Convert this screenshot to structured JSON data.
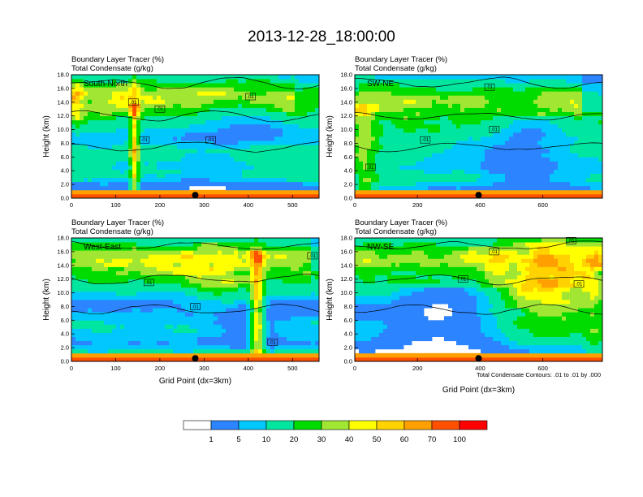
{
  "figure": {
    "title": "2013-12-28_18:00:00",
    "contour_note": "Total Condensate Contours: .01 to .01 by .000"
  },
  "colors": {
    "bins": [
      "#ffffff",
      "#2c84ff",
      "#00c8ff",
      "#00e6a0",
      "#00dc00",
      "#a0e632",
      "#ffff00",
      "#ffd200",
      "#ffa000",
      "#ff5000",
      "#ff0000"
    ],
    "contour": "#000000",
    "marker": "#000000"
  },
  "colorbar": {
    "labels": [
      "1",
      "5",
      "10",
      "20",
      "30",
      "40",
      "50",
      "60",
      "70",
      "100"
    ]
  },
  "chart_data": [
    {
      "type": "heatmap",
      "panel_label": "South-North",
      "title_left_1": "Boundary Layer Tracer   (%)",
      "title_left_2": "Total Condensate  (g/kg)",
      "ylabel": "Height (km)",
      "xlabel": "",
      "xlim": [
        0,
        560
      ],
      "ylim": [
        0,
        18
      ],
      "xticks": [
        "0",
        "100",
        "200",
        "300",
        "400",
        "500"
      ],
      "yticks": [
        "0.0",
        "2.0",
        "4.0",
        "6.0",
        "8.0",
        "10.0",
        "12.0",
        "14.0",
        "16.0",
        "18.0"
      ],
      "marker_x": 280,
      "contour_labels": [
        {
          "text": ".01",
          "x": 140,
          "y": 14.0
        },
        {
          "text": ".01",
          "x": 200,
          "y": 13.0
        },
        {
          "text": ".01",
          "x": 165,
          "y": 8.5
        },
        {
          "text": ".01",
          "x": 315,
          "y": 8.5
        },
        {
          "text": ".01",
          "x": 405,
          "y": 14.8
        }
      ]
    },
    {
      "type": "heatmap",
      "panel_label": "SW-NE",
      "title_left_1": "Boundary Layer Tracer   (%)",
      "title_left_2": "Total Condensate  (g/kg)",
      "ylabel": "Height (km)",
      "xlabel": "",
      "xlim": [
        0,
        790
      ],
      "ylim": [
        0,
        18
      ],
      "xticks": [
        "0",
        "200",
        "400",
        "600"
      ],
      "yticks": [
        "0.0",
        "2.0",
        "4.0",
        "6.0",
        "8.0",
        "10.0",
        "12.0",
        "14.0",
        "16.0",
        "18.0"
      ],
      "marker_x": 395,
      "contour_labels": [
        {
          "text": ".01",
          "x": 430,
          "y": 16.2
        },
        {
          "text": ".01",
          "x": 445,
          "y": 10.0
        },
        {
          "text": ".01",
          "x": 225,
          "y": 8.5
        },
        {
          "text": ".01",
          "x": 50,
          "y": 4.5
        }
      ]
    },
    {
      "type": "heatmap",
      "panel_label": "West-East",
      "title_left_1": "Boundary Layer Tracer   (%)",
      "title_left_2": "Total Condensate  (g/kg)",
      "ylabel": "Height (km)",
      "xlabel": "Grid Point (dx=3km)",
      "xlim": [
        0,
        560
      ],
      "ylim": [
        0,
        18
      ],
      "xticks": [
        "0",
        "100",
        "200",
        "300",
        "400",
        "500"
      ],
      "yticks": [
        "0.0",
        "2.0",
        "4.0",
        "6.0",
        "8.0",
        "10.0",
        "12.0",
        "14.0",
        "16.0",
        "18.0"
      ],
      "marker_x": 280,
      "contour_labels": [
        {
          "text": ".01",
          "x": 545,
          "y": 15.4
        },
        {
          "text": ".01",
          "x": 175,
          "y": 11.5
        },
        {
          "text": ".01",
          "x": 280,
          "y": 8.0
        },
        {
          "text": ".01",
          "x": 455,
          "y": 2.8
        }
      ]
    },
    {
      "type": "heatmap",
      "panel_label": "NW-SE",
      "title_left_1": "Boundary Layer Tracer   (%)",
      "title_left_2": "Total Condensate  (g/kg)",
      "ylabel": "Height (km)",
      "xlabel": "Grid Point (dx=3km)",
      "xlim": [
        0,
        790
      ],
      "ylim": [
        0,
        18
      ],
      "xticks": [
        "0",
        "200",
        "400",
        "600"
      ],
      "yticks": [
        "0.0",
        "2.0",
        "4.0",
        "6.0",
        "8.0",
        "10.0",
        "12.0",
        "14.0",
        "16.0",
        "18.0"
      ],
      "marker_x": 395,
      "contour_labels": [
        {
          "text": ".01",
          "x": 445,
          "y": 16.0
        },
        {
          "text": ".01",
          "x": 690,
          "y": 17.6
        },
        {
          "text": ".01",
          "x": 715,
          "y": 11.3
        },
        {
          "text": ".01",
          "x": 345,
          "y": 12.0
        }
      ]
    }
  ]
}
